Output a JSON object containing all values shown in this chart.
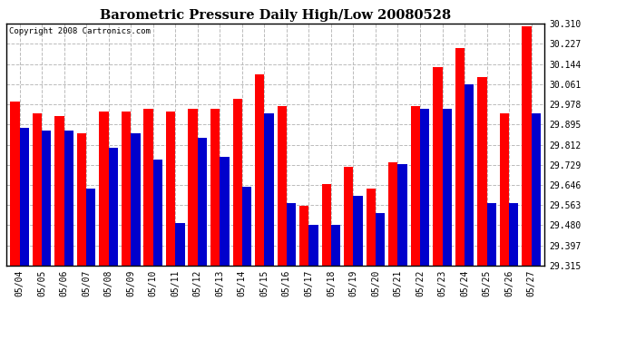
{
  "title": "Barometric Pressure Daily High/Low 20080528",
  "copyright": "Copyright 2008 Cartronics.com",
  "dates": [
    "05/04",
    "05/05",
    "05/06",
    "05/07",
    "05/08",
    "05/09",
    "05/10",
    "05/11",
    "05/12",
    "05/13",
    "05/14",
    "05/15",
    "05/16",
    "05/17",
    "05/18",
    "05/19",
    "05/20",
    "05/21",
    "05/22",
    "05/23",
    "05/24",
    "05/25",
    "05/26",
    "05/27"
  ],
  "highs": [
    29.99,
    29.94,
    29.93,
    29.86,
    29.95,
    29.95,
    29.96,
    29.95,
    29.96,
    29.96,
    30.0,
    30.1,
    29.97,
    29.56,
    29.65,
    29.72,
    29.63,
    29.74,
    29.97,
    30.13,
    30.21,
    30.09,
    29.94,
    30.3
  ],
  "lows": [
    29.88,
    29.87,
    29.87,
    29.63,
    29.8,
    29.86,
    29.75,
    29.49,
    29.84,
    29.76,
    29.64,
    29.94,
    29.57,
    29.48,
    29.48,
    29.6,
    29.53,
    29.73,
    29.96,
    29.96,
    30.06,
    29.57,
    29.57,
    29.94
  ],
  "ymin": 29.315,
  "ymax": 30.31,
  "yticks": [
    29.315,
    29.397,
    29.48,
    29.563,
    29.646,
    29.729,
    29.812,
    29.895,
    29.978,
    30.061,
    30.144,
    30.227,
    30.31
  ],
  "high_color": "#ff0000",
  "low_color": "#0000cc",
  "bg_color": "#ffffff",
  "plot_bg_color": "#ffffff",
  "grid_color": "#bbbbbb",
  "bar_width": 0.42
}
